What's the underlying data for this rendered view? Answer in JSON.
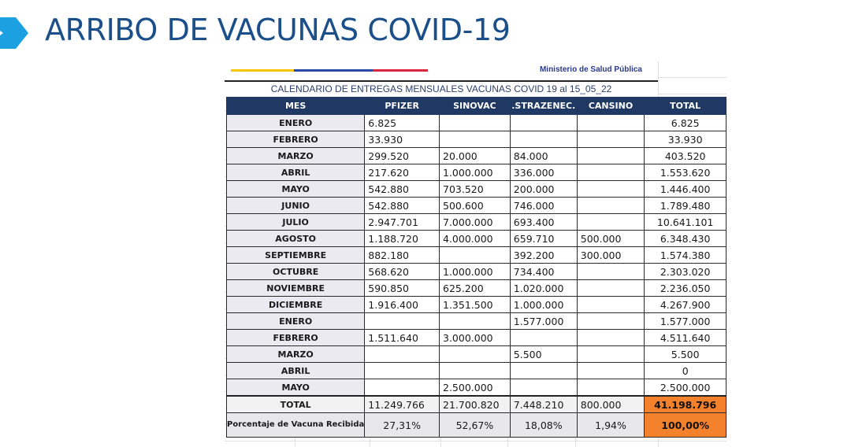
{
  "slide": {
    "title": "ARRIBO DE VACUNAS COVID-19",
    "accent_color": "#1ba1e2",
    "title_color": "#1b4f8a"
  },
  "sheet": {
    "ministry": "Ministerio de Salud Pública",
    "calendar_title": "CALENDARIO DE ENTREGAS MENSUALES VACUNAS COVID 19 al 15_05_22",
    "headers": [
      "MES",
      "PFIZER",
      "SINOVAC",
      ".STRAZENEC.",
      "CANSINO",
      "TOTAL"
    ],
    "rows": [
      [
        "ENERO",
        "6.825",
        "",
        "",
        "",
        "6.825"
      ],
      [
        "FEBRERO",
        "33.930",
        "",
        "",
        "",
        "33.930"
      ],
      [
        "MARZO",
        "299.520",
        "20.000",
        "84.000",
        "",
        "403.520"
      ],
      [
        "ABRIL",
        "217.620",
        "1.000.000",
        "336.000",
        "",
        "1.553.620"
      ],
      [
        "MAYO",
        "542.880",
        "703.520",
        "200.000",
        "",
        "1.446.400"
      ],
      [
        "JUNIO",
        "542.880",
        "500.600",
        "746.000",
        "",
        "1.789.480"
      ],
      [
        "JULIO",
        "2.947.701",
        "7.000.000",
        "693.400",
        "",
        "10.641.101"
      ],
      [
        "AGOSTO",
        "1.188.720",
        "4.000.000",
        "659.710",
        "500.000",
        "6.348.430"
      ],
      [
        "SEPTIEMBRE",
        "882.180",
        "",
        "392.200",
        "300.000",
        "1.574.380"
      ],
      [
        "OCTUBRE",
        "568.620",
        "1.000.000",
        "734.400",
        "",
        "2.303.020"
      ],
      [
        "NOVIEMBRE",
        "590.850",
        "625.200",
        "1.020.000",
        "",
        "2.236.050"
      ],
      [
        "DICIEMBRE",
        "1.916.400",
        "1.351.500",
        "1.000.000",
        "",
        "4.267.900"
      ],
      [
        "ENERO",
        "",
        "",
        "1.577.000",
        "",
        "1.577.000"
      ],
      [
        "FEBRERO",
        "1.511.640",
        "3.000.000",
        "",
        "",
        "4.511.640"
      ],
      [
        "MARZO",
        "",
        "",
        "5.500",
        "",
        "5.500"
      ],
      [
        "ABRIL",
        "",
        "",
        "",
        "",
        "0"
      ],
      [
        "MAYO",
        "",
        "2.500.000",
        "",
        "",
        "2.500.000"
      ]
    ],
    "total_row": [
      "TOTAL",
      "11.249.766",
      "21.700.820",
      "7.448.210",
      "800.000",
      "41.198.796"
    ],
    "pct_row": [
      "Porcentaje de Vacuna Recibida",
      "27,31%",
      "52,67%",
      "18,08%",
      "1,94%",
      "100,00%"
    ],
    "highlight_color": "#f4812b",
    "header_color": "#1f3864"
  }
}
